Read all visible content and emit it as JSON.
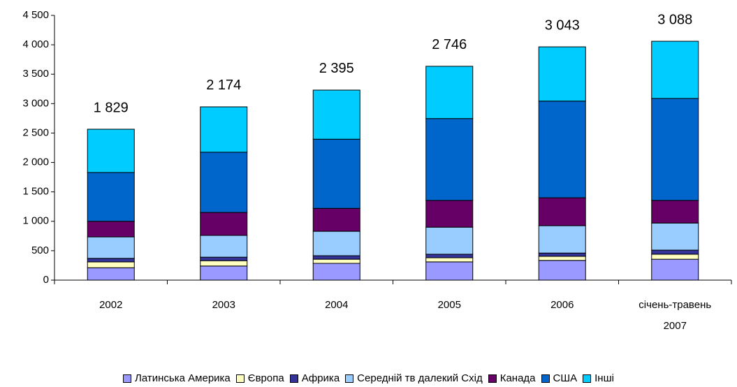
{
  "chart_data": {
    "type": "stacked_bar",
    "categories": [
      "2002",
      "2003",
      "2004",
      "2005",
      "2006",
      "січень-травень 2007"
    ],
    "series": [
      {
        "name": "Латинська Америка",
        "color": "#9999ff",
        "values": [
          210,
          240,
          285,
          310,
          335,
          355
        ]
      },
      {
        "name": "Європа",
        "color": "#ffffc0",
        "values": [
          100,
          90,
          70,
          70,
          70,
          85
        ]
      },
      {
        "name": "Африка",
        "color": "#333399",
        "values": [
          60,
          60,
          60,
          60,
          55,
          70
        ]
      },
      {
        "name": "Середній тв далекий Схід",
        "color": "#99ccff",
        "values": [
          365,
          370,
          415,
          460,
          465,
          460
        ]
      },
      {
        "name": "Канада",
        "color": "#660066",
        "values": [
          265,
          390,
          390,
          455,
          475,
          385
        ]
      },
      {
        "name": "США",
        "color": "#0066cc",
        "values": [
          829,
          1024,
          1175,
          1391,
          1643,
          1733
        ]
      },
      {
        "name": "Інші",
        "color": "#00ccff",
        "values": [
          736,
          771,
          835,
          889,
          922,
          972
        ]
      }
    ],
    "annotations": [
      "1 829",
      "2 174",
      "2 395",
      "2 746",
      "3 043",
      "3 088"
    ],
    "ylim": [
      0,
      4500
    ],
    "yticks": [
      0,
      500,
      {
        "value": 1000,
        "label": "1 000"
      },
      {
        "value": 1500,
        "label": "1 500"
      },
      {
        "value": 2000,
        "label": "2 000"
      },
      {
        "value": 2500,
        "label": "2 500"
      },
      {
        "value": 3000,
        "label": "3 000"
      },
      {
        "value": 3500,
        "label": "3 500"
      },
      {
        "value": 4000,
        "label": "4 000"
      },
      {
        "value": 4500,
        "label": "4 500"
      }
    ],
    "grid": false
  }
}
